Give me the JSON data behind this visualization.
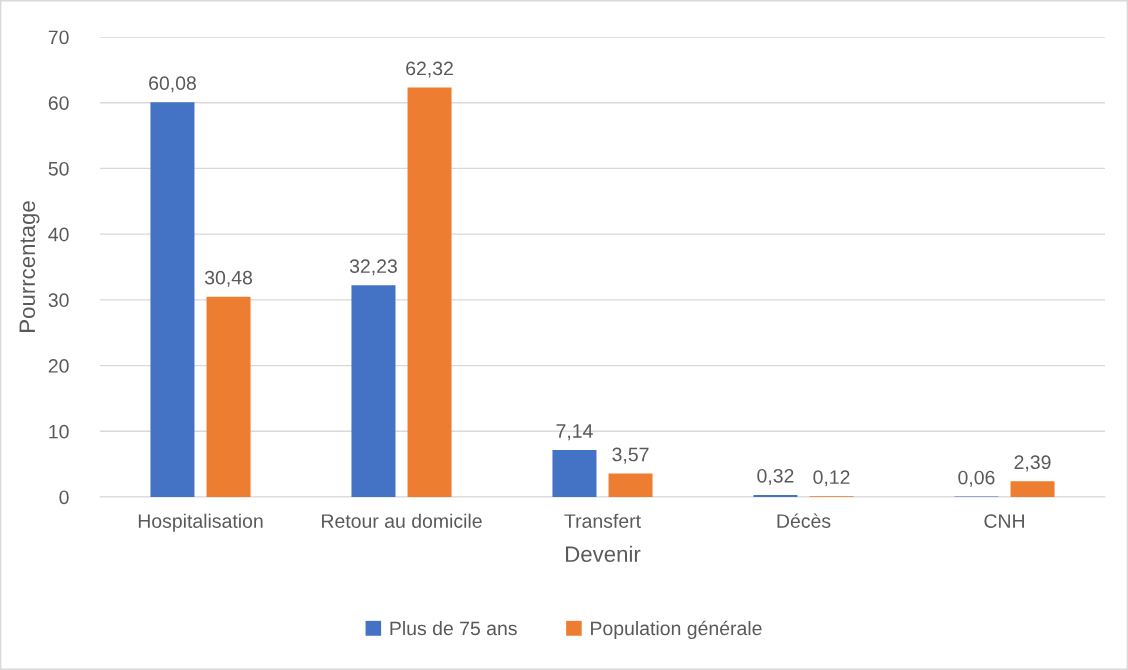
{
  "chart_data": {
    "type": "bar",
    "xlabel": "Devenir",
    "ylabel": "Pourrcentage",
    "categories": [
      "Hospitalisation",
      "Retour au domicile",
      "Transfert",
      "Décès",
      "CNH"
    ],
    "series": [
      {
        "name": "Plus de 75 ans",
        "color": "#4472c4",
        "values": [
          60.08,
          32.23,
          7.14,
          0.32,
          0.06
        ],
        "value_labels": [
          "60,08",
          "32,23",
          "7,14",
          "0,32",
          "0,06"
        ]
      },
      {
        "name": "Population générale",
        "color": "#ed7d31",
        "values": [
          30.48,
          62.32,
          3.57,
          0.12,
          2.39
        ],
        "value_labels": [
          "30,48",
          "62,32",
          "3,57",
          "0,12",
          "2,39"
        ]
      }
    ],
    "ylim": [
      0,
      70
    ],
    "yticks": [
      0,
      10,
      20,
      30,
      40,
      50,
      60,
      70
    ],
    "grid": "y",
    "legend": "bottom"
  }
}
